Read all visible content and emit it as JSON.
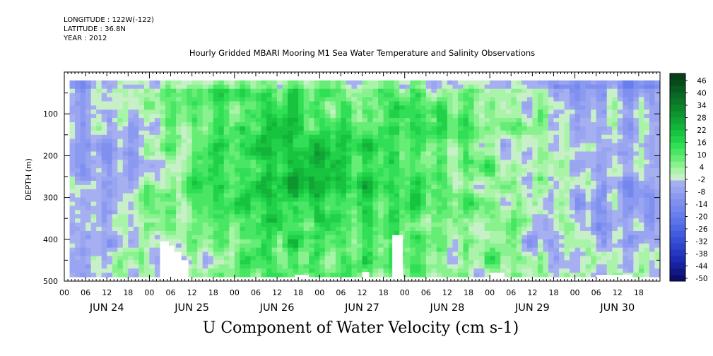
{
  "meta": {
    "longitude": "LONGITUDE : 122W(-122)",
    "latitude": "LATITUDE : 36.8N",
    "year": "YEAR : 2012"
  },
  "chart_data": {
    "type": "heatmap",
    "title": "Hourly Gridded MBARI Mooring M1 Sea Water Temperature and Salinity Observations",
    "xlabel": "",
    "ylabel": "DEPTH (m)",
    "variable_label": "U Component of Water Velocity (cm s-1)",
    "ylim": [
      500,
      0
    ],
    "yticks": [
      100,
      200,
      300,
      400,
      500
    ],
    "xlim_hours": [
      0,
      168
    ],
    "hour_ticks": [
      "00",
      "06",
      "12",
      "18",
      "00",
      "06",
      "12",
      "18",
      "00",
      "06",
      "12",
      "18",
      "00",
      "06",
      "12",
      "18",
      "00",
      "06",
      "12",
      "18",
      "00",
      "06",
      "12",
      "18",
      "00",
      "06",
      "12",
      "18"
    ],
    "day_labels": [
      "JUN 24",
      "JUN 25",
      "JUN 26",
      "JUN 27",
      "JUN 28",
      "JUN 29",
      "JUN 30"
    ],
    "data_extent": {
      "hour_start": 1.5,
      "hour_end": 168,
      "depth_top": 20,
      "depth_bottom": 485
    },
    "colorbar": {
      "labels": [
        "46",
        "40",
        "34",
        "28",
        "22",
        "16",
        "10",
        "4",
        "-2",
        "-8",
        "-14",
        "-20",
        "-26",
        "-32",
        "-38",
        "-44",
        "-50"
      ],
      "min": -50,
      "max": 50,
      "step": 3
    },
    "profiles_by_day": [
      {
        "day": "JUN 24",
        "mean_u_cm_s": -5
      },
      {
        "day": "JUN 25",
        "mean_u_cm_s": 8
      },
      {
        "day": "JUN 26",
        "mean_u_cm_s": 18
      },
      {
        "day": "JUN 27",
        "mean_u_cm_s": 14
      },
      {
        "day": "JUN 28",
        "mean_u_cm_s": 10
      },
      {
        "day": "JUN 29",
        "mean_u_cm_s": 2
      },
      {
        "day": "JUN 30",
        "mean_u_cm_s": -6
      }
    ],
    "grid": false
  }
}
